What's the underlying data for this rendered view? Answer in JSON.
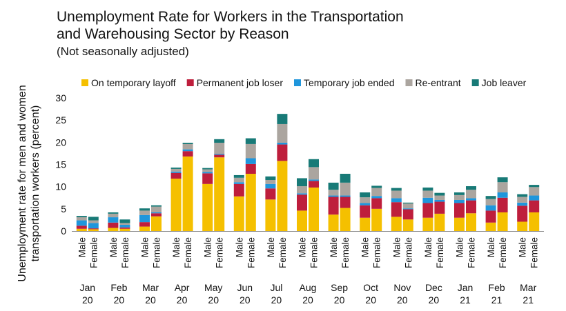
{
  "title_line1": "Unemployment Rate for Workers in the Transportation",
  "title_line2": "and Warehousing Sector by Reason",
  "subtitle": "(Not seasonally adjusted)",
  "chart_data": {
    "type": "bar",
    "stacked": true,
    "title": "Unemployment Rate for Workers in the Transportation and Warehousing Sector by Reason",
    "subtitle": "(Not seasonally adjusted)",
    "ylabel_line1": "Unemployment rate for men and women",
    "ylabel_line2": "transportation workers (percent)",
    "ylim": [
      0,
      30
    ],
    "yticks": [
      0,
      5,
      10,
      15,
      20,
      25,
      30
    ],
    "grid": false,
    "legend_position": "top",
    "months": [
      {
        "m": "Jan",
        "y": "20"
      },
      {
        "m": "Feb",
        "y": "20"
      },
      {
        "m": "Mar",
        "y": "20"
      },
      {
        "m": "Apr",
        "y": "20"
      },
      {
        "m": "May",
        "y": "20"
      },
      {
        "m": "Jun",
        "y": "20"
      },
      {
        "m": "Jul",
        "y": "20"
      },
      {
        "m": "Aug",
        "y": "20"
      },
      {
        "m": "Sep",
        "y": "20"
      },
      {
        "m": "Oct",
        "y": "20"
      },
      {
        "m": "Nov",
        "y": "20"
      },
      {
        "m": "Dec",
        "y": "20"
      },
      {
        "m": "Jan",
        "y": "21"
      },
      {
        "m": "Feb",
        "y": "21"
      },
      {
        "m": "Mar",
        "y": "21"
      }
    ],
    "sexes": [
      "Male",
      "Female"
    ],
    "series": [
      {
        "name": "On temporary layoff",
        "color": "#F5C000",
        "male": [
          0.5,
          0.7,
          1.0,
          11.8,
          10.6,
          7.8,
          7.1,
          4.6,
          3.7,
          3.0,
          3.2,
          3.0,
          3.0,
          1.9,
          2.1
        ],
        "female": [
          0.4,
          0.5,
          3.3,
          16.8,
          16.6,
          12.9,
          15.8,
          9.8,
          5.2,
          5.0,
          2.6,
          3.9,
          4.0,
          4.2,
          4.2
        ]
      },
      {
        "name": "Permanent job loser",
        "color": "#BE1E3C",
        "male": [
          0.7,
          1.2,
          1.0,
          1.3,
          2.4,
          2.8,
          2.5,
          3.6,
          4.0,
          2.8,
          3.3,
          3.3,
          3.3,
          2.7,
          3.6
        ],
        "female": [
          0.2,
          0.3,
          0.7,
          1.2,
          0.6,
          2.2,
          3.7,
          1.5,
          2.5,
          2.4,
          2.3,
          2.7,
          2.9,
          3.3,
          2.7
        ]
      },
      {
        "name": "Temporary job ended",
        "color": "#1F96DC",
        "male": [
          1.2,
          1.2,
          1.6,
          0.3,
          0.3,
          0.4,
          1.0,
          0.3,
          0.3,
          0.5,
          0.9,
          1.2,
          0.7,
          1.2,
          0.7
        ],
        "female": [
          1.2,
          0.6,
          0.2,
          0.4,
          0.2,
          1.3,
          0.4,
          0.3,
          0.3,
          0.5,
          0.2,
          0.4,
          0.5,
          1.2,
          1.1
        ]
      },
      {
        "name": "Re-entrant",
        "color": "#ABA59F",
        "male": [
          0.7,
          0.8,
          1.0,
          0.6,
          0.6,
          1.0,
          0.9,
          1.6,
          1.3,
          1.3,
          1.7,
          1.6,
          1.1,
          1.4,
          1.3
        ],
        "female": [
          0.6,
          0.4,
          1.3,
          1.2,
          2.5,
          3.2,
          4.2,
          2.8,
          2.9,
          1.8,
          1.1,
          1.0,
          1.9,
          2.3,
          1.9
        ]
      },
      {
        "name": "Job leaver",
        "color": "#187A77",
        "male": [
          0.3,
          0.3,
          0.5,
          0.3,
          0.3,
          0.6,
          0.8,
          1.8,
          1.6,
          1.1,
          0.6,
          0.7,
          0.6,
          0.7,
          0.6
        ],
        "female": [
          0.8,
          0.8,
          0.3,
          0.3,
          0.8,
          1.3,
          2.3,
          1.8,
          2.0,
          0.5,
          0.2,
          0.6,
          0.8,
          1.1,
          0.5
        ]
      }
    ]
  }
}
